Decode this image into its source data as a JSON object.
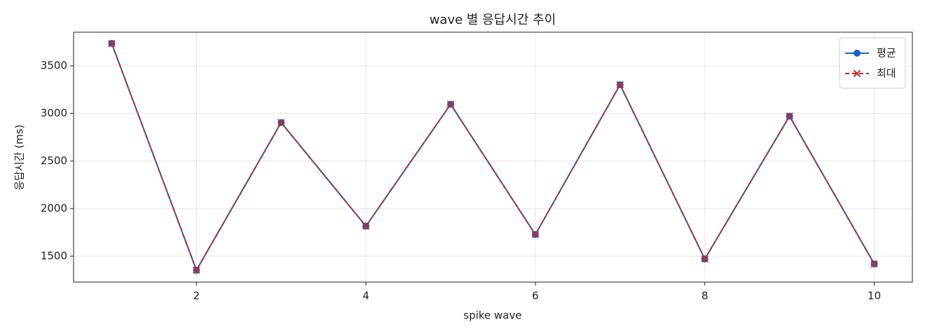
{
  "chart_data": {
    "type": "line",
    "title": "wave 별 응답시간 추이",
    "x_label": "spike wave",
    "y_label": "응답시간 (ms)",
    "x": [
      1,
      2,
      3,
      4,
      5,
      6,
      7,
      8,
      9,
      10
    ],
    "series": [
      {
        "name": "평균",
        "color": "#1565c0",
        "marker": "o",
        "dashed": false,
        "values": [
          3735,
          1353,
          2904,
          1816,
          3096,
          1728,
          3301,
          1471,
          2971,
          1419
        ]
      },
      {
        "name": "최대",
        "color": "#c62828",
        "marker": "x",
        "dashed": true,
        "values": [
          3735,
          1353,
          2904,
          1816,
          3096,
          1728,
          3301,
          1471,
          2971,
          1419
        ]
      }
    ],
    "xlim": [
      0.55,
      10.45
    ],
    "ylim": [
      1228,
      3853
    ],
    "xticks": [
      2,
      4,
      6,
      8,
      10
    ],
    "yticks": [
      1500,
      2000,
      2500,
      3000,
      3500
    ],
    "grid": true,
    "legend": "upper right"
  }
}
